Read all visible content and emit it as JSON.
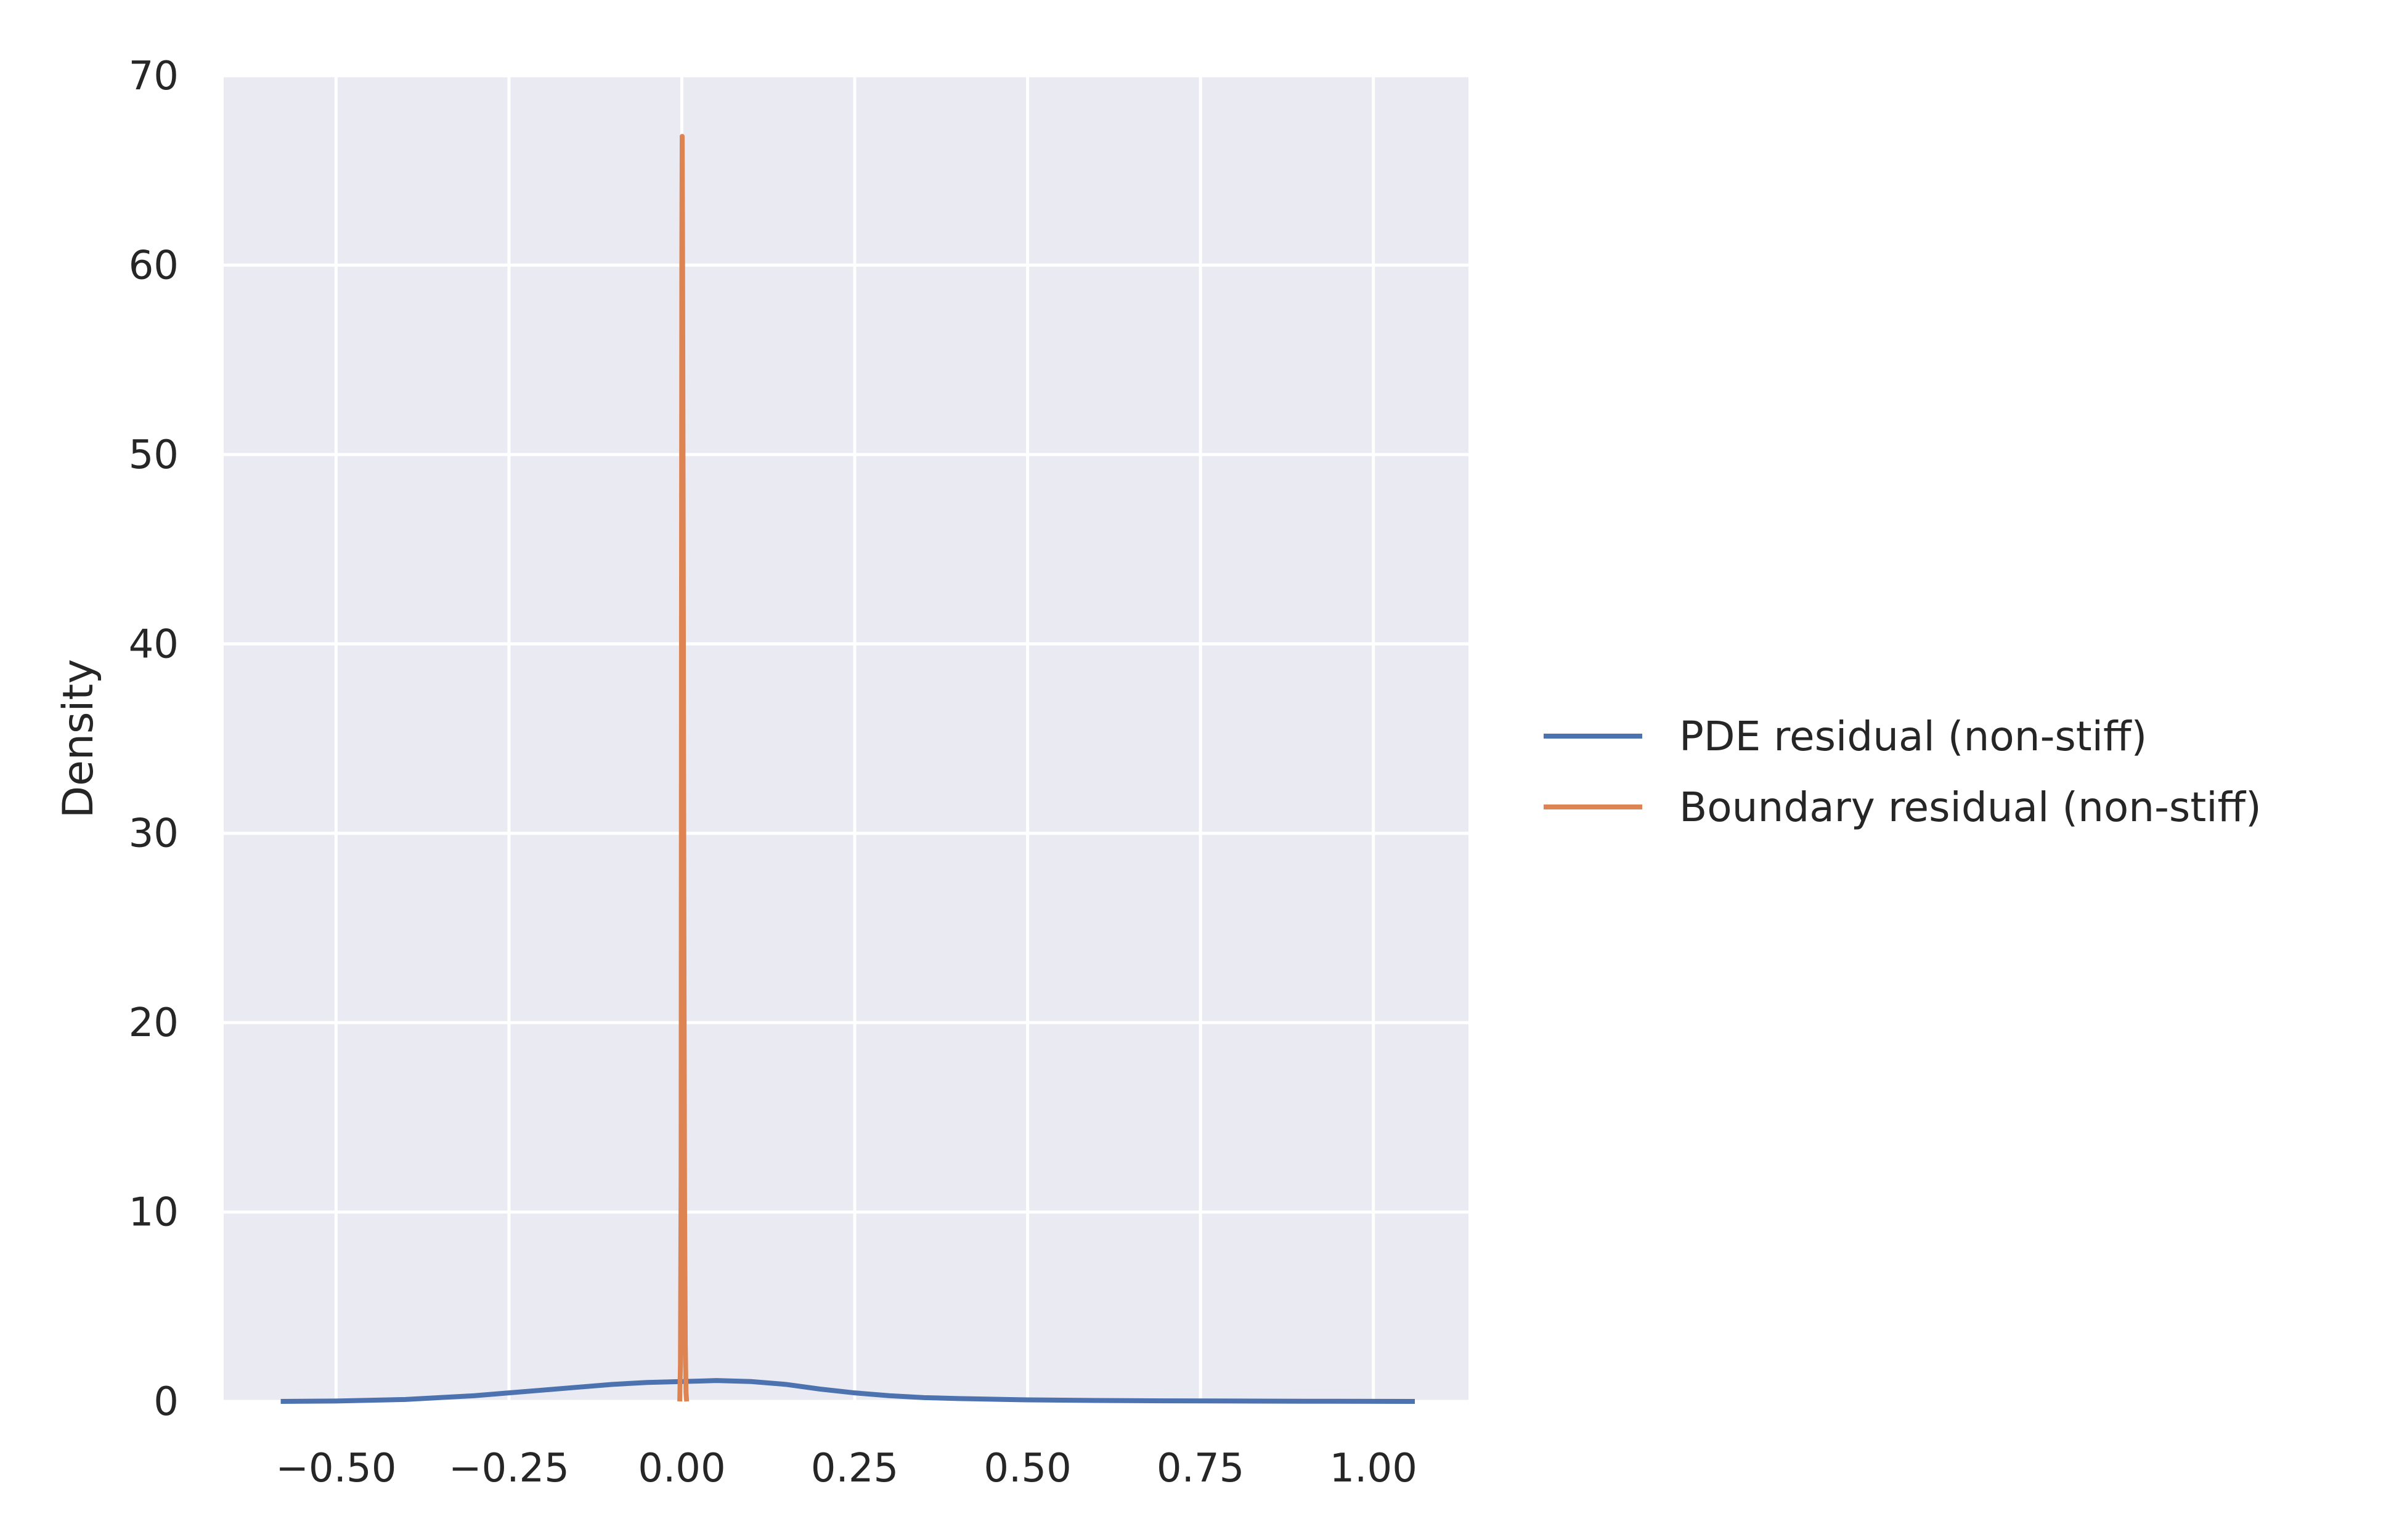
{
  "chart_data": {
    "type": "line",
    "title": "",
    "xlabel": "",
    "ylabel": "Density",
    "xlim": [
      -0.6625,
      1.1375
    ],
    "ylim": [
      0,
      70
    ],
    "xticks": [
      -0.5,
      -0.25,
      0.0,
      0.25,
      0.5,
      0.75,
      1.0
    ],
    "xtick_labels": [
      "−0.50",
      "−0.25",
      "0.00",
      "0.25",
      "0.50",
      "0.75",
      "1.00"
    ],
    "yticks": [
      0,
      10,
      20,
      30,
      40,
      50,
      60,
      70
    ],
    "ytick_labels": [
      "0",
      "10",
      "20",
      "30",
      "40",
      "50",
      "60",
      "70"
    ],
    "grid": true,
    "legend_position": "right",
    "series": [
      {
        "name": "PDE residual (non-stiff)",
        "color": "#4c72b0",
        "x": [
          -0.58,
          -0.5,
          -0.4,
          -0.3,
          -0.25,
          -0.2,
          -0.15,
          -0.1,
          -0.05,
          0.0,
          0.05,
          0.1,
          0.15,
          0.2,
          0.25,
          0.3,
          0.35,
          0.4,
          0.5,
          0.6,
          0.7,
          0.8,
          0.9,
          1.0,
          1.06
        ],
        "y": [
          0.0,
          0.02,
          0.1,
          0.3,
          0.45,
          0.6,
          0.75,
          0.9,
          1.0,
          1.05,
          1.1,
          1.05,
          0.9,
          0.65,
          0.45,
          0.3,
          0.2,
          0.15,
          0.08,
          0.05,
          0.03,
          0.02,
          0.01,
          0.005,
          0.0
        ]
      },
      {
        "name": "Boundary residual (non-stiff)",
        "color": "#dd8452",
        "x": [
          -0.003,
          -0.002,
          -0.001,
          -0.0005,
          0.0,
          0.0005,
          0.001,
          0.002,
          0.003,
          0.004,
          0.005,
          0.006,
          0.007
        ],
        "y": [
          0.0,
          2.0,
          12.0,
          40.0,
          60.0,
          66.8,
          62.0,
          45.0,
          25.0,
          10.0,
          3.0,
          0.5,
          0.0
        ]
      }
    ]
  }
}
